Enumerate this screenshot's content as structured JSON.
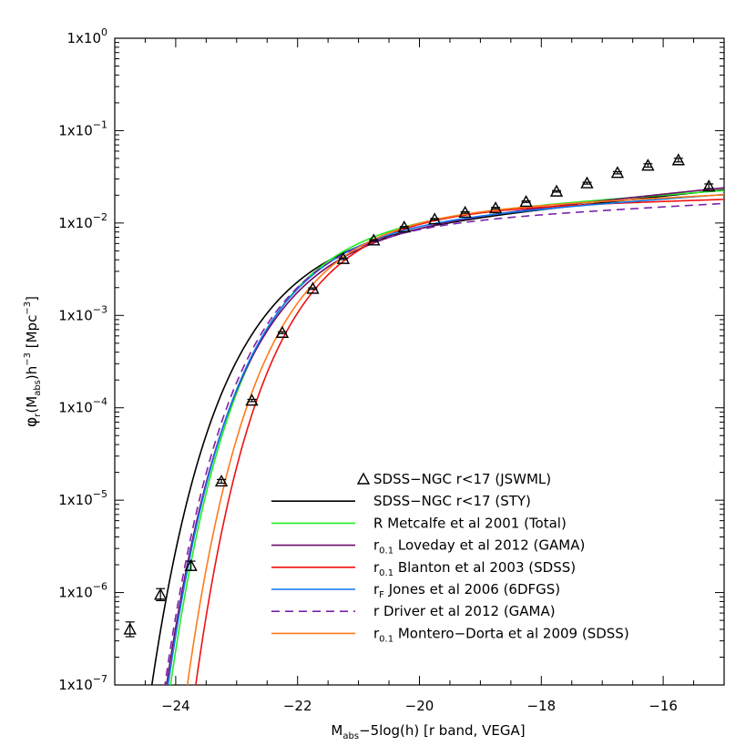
{
  "chart_data": {
    "type": "line",
    "title": "",
    "xlabel": {
      "main": "M",
      "sub": "abs",
      "rest": "−5log(h) [r band, VEGA]"
    },
    "ylabel": {
      "phi": "φ",
      "phi_sub": "r",
      "open": "(M",
      "m_sub": "abs",
      "mid": ")h",
      "exp": "−3",
      "unit": " [Mpc",
      "unit_exp": "−3",
      "close": "]"
    },
    "xlim": [
      -25,
      -15
    ],
    "ylim_log10": [
      -7,
      0
    ],
    "log_y": true,
    "x_ticks": [
      {
        "value": -24,
        "label": "−24"
      },
      {
        "value": -22,
        "label": "−22"
      },
      {
        "value": -20,
        "label": "−20"
      },
      {
        "value": -18,
        "label": "−18"
      },
      {
        "value": -16,
        "label": "−16"
      }
    ],
    "y_ticks": [
      {
        "value": 0,
        "base": "1x10",
        "exp": "0"
      },
      {
        "value": -1,
        "base": "1x10",
        "exp": "−1"
      },
      {
        "value": -2,
        "base": "1x10",
        "exp": "−2"
      },
      {
        "value": -3,
        "base": "1x10",
        "exp": "−3"
      },
      {
        "value": -4,
        "base": "1x10",
        "exp": "−4"
      },
      {
        "value": -5,
        "base": "1x10",
        "exp": "−5"
      },
      {
        "value": -6,
        "base": "1x10",
        "exp": "−6"
      },
      {
        "value": -7,
        "base": "1x10",
        "exp": "−7"
      }
    ],
    "legend_position": "bottom-right",
    "points": {
      "name": "SDSS−NGC r<17 (JSWML)",
      "color": "#000000",
      "x": [
        -24.75,
        -24.25,
        -23.75,
        -23.25,
        -22.75,
        -22.25,
        -21.75,
        -21.25,
        -20.75,
        -20.25,
        -19.75,
        -19.25,
        -18.75,
        -18.25,
        -17.75,
        -17.25,
        -16.75,
        -16.25,
        -15.75,
        -15.25
      ],
      "y": [
        4e-07,
        9.5e-07,
        1.95e-06,
        1.6e-05,
        0.00012,
        0.00065,
        0.00195,
        0.0041,
        0.0065,
        0.009,
        0.011,
        0.013,
        0.0145,
        0.017,
        0.022,
        0.027,
        0.035,
        0.042,
        0.048,
        0.025
      ],
      "err_log": [
        0.08,
        0.065,
        0.05,
        0.02,
        0.012,
        0.01,
        0.008,
        0.008,
        0.008,
        0.008,
        0.008,
        0.008,
        0.008,
        0.008,
        0.008,
        0.01,
        0.012,
        0.018,
        0.02,
        0.025
      ]
    },
    "series": [
      {
        "id": "sdss-sty",
        "band": "",
        "sub": "",
        "label": "SDSS−NGC r<17 (STY)",
        "color": "#000000",
        "dashed": false,
        "mstar": -21.8,
        "phistar": 0.0086,
        "alpha": -1.17
      },
      {
        "id": "metcalfe",
        "band": "R",
        "sub": "",
        "label": "Metcalfe et al 2001 (Total)",
        "color": "#22ee22",
        "dashed": false,
        "mstar": -21.45,
        "phistar": 0.012,
        "alpha": -1.12
      },
      {
        "id": "loveday",
        "band": "r",
        "sub": "0.1",
        "label": "Loveday et al 2012 (GAMA)",
        "color": "#6a0d6a",
        "dashed": false,
        "mstar": -21.55,
        "phistar": 0.0094,
        "alpha": -1.17
      },
      {
        "id": "blanton",
        "band": "r",
        "sub": "0.1",
        "label": "Blanton et al 2003 (SDSS)",
        "color": "#ee1111",
        "dashed": false,
        "mstar": -21.0,
        "phistar": 0.0149,
        "alpha": -1.05
      },
      {
        "id": "jones",
        "band": "r",
        "sub": "F",
        "label": "Jones et al 2006 (6DFGS)",
        "color": "#1177ee",
        "dashed": false,
        "mstar": -21.5,
        "phistar": 0.0108,
        "alpha": -1.12
      },
      {
        "id": "driver",
        "band": "r",
        "sub": "",
        "label": "Driver et al 2012 (GAMA)",
        "color": "#7a22aa",
        "dashed": true,
        "mstar": -21.55,
        "phistar": 0.0103,
        "alpha": -1.09
      },
      {
        "id": "montero",
        "band": "r",
        "sub": "0.1",
        "label": "Montero−Dorta et al 2009 (SDSS)",
        "color": "#ff7a1a",
        "dashed": false,
        "mstar": -21.15,
        "phistar": 0.014,
        "alpha": -1.08
      }
    ]
  }
}
